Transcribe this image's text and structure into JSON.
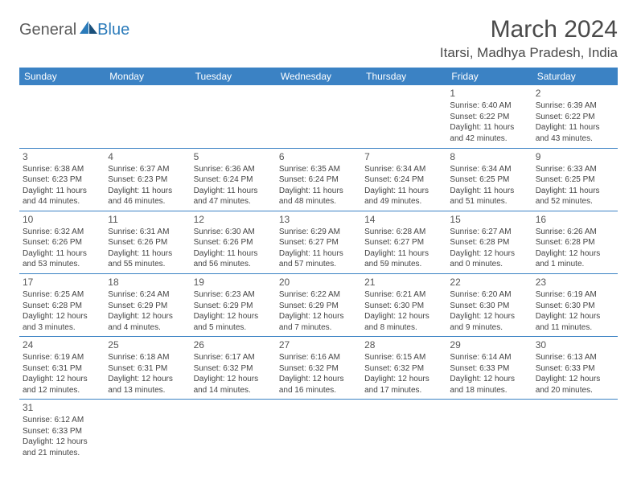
{
  "logo": {
    "general": "General",
    "blue": "Blue"
  },
  "title": "March 2024",
  "location": "Itarsi, Madhya Pradesh, India",
  "header_color": "#3b82c4",
  "border_color": "#3b82c4",
  "text_color": "#444444",
  "days_of_week": [
    "Sunday",
    "Monday",
    "Tuesday",
    "Wednesday",
    "Thursday",
    "Friday",
    "Saturday"
  ],
  "cells": [
    [
      null,
      null,
      null,
      null,
      null,
      {
        "num": "1",
        "sunrise": "Sunrise: 6:40 AM",
        "sunset": "Sunset: 6:22 PM",
        "daylight": "Daylight: 11 hours and 42 minutes."
      },
      {
        "num": "2",
        "sunrise": "Sunrise: 6:39 AM",
        "sunset": "Sunset: 6:22 PM",
        "daylight": "Daylight: 11 hours and 43 minutes."
      }
    ],
    [
      {
        "num": "3",
        "sunrise": "Sunrise: 6:38 AM",
        "sunset": "Sunset: 6:23 PM",
        "daylight": "Daylight: 11 hours and 44 minutes."
      },
      {
        "num": "4",
        "sunrise": "Sunrise: 6:37 AM",
        "sunset": "Sunset: 6:23 PM",
        "daylight": "Daylight: 11 hours and 46 minutes."
      },
      {
        "num": "5",
        "sunrise": "Sunrise: 6:36 AM",
        "sunset": "Sunset: 6:24 PM",
        "daylight": "Daylight: 11 hours and 47 minutes."
      },
      {
        "num": "6",
        "sunrise": "Sunrise: 6:35 AM",
        "sunset": "Sunset: 6:24 PM",
        "daylight": "Daylight: 11 hours and 48 minutes."
      },
      {
        "num": "7",
        "sunrise": "Sunrise: 6:34 AM",
        "sunset": "Sunset: 6:24 PM",
        "daylight": "Daylight: 11 hours and 49 minutes."
      },
      {
        "num": "8",
        "sunrise": "Sunrise: 6:34 AM",
        "sunset": "Sunset: 6:25 PM",
        "daylight": "Daylight: 11 hours and 51 minutes."
      },
      {
        "num": "9",
        "sunrise": "Sunrise: 6:33 AM",
        "sunset": "Sunset: 6:25 PM",
        "daylight": "Daylight: 11 hours and 52 minutes."
      }
    ],
    [
      {
        "num": "10",
        "sunrise": "Sunrise: 6:32 AM",
        "sunset": "Sunset: 6:26 PM",
        "daylight": "Daylight: 11 hours and 53 minutes."
      },
      {
        "num": "11",
        "sunrise": "Sunrise: 6:31 AM",
        "sunset": "Sunset: 6:26 PM",
        "daylight": "Daylight: 11 hours and 55 minutes."
      },
      {
        "num": "12",
        "sunrise": "Sunrise: 6:30 AM",
        "sunset": "Sunset: 6:26 PM",
        "daylight": "Daylight: 11 hours and 56 minutes."
      },
      {
        "num": "13",
        "sunrise": "Sunrise: 6:29 AM",
        "sunset": "Sunset: 6:27 PM",
        "daylight": "Daylight: 11 hours and 57 minutes."
      },
      {
        "num": "14",
        "sunrise": "Sunrise: 6:28 AM",
        "sunset": "Sunset: 6:27 PM",
        "daylight": "Daylight: 11 hours and 59 minutes."
      },
      {
        "num": "15",
        "sunrise": "Sunrise: 6:27 AM",
        "sunset": "Sunset: 6:28 PM",
        "daylight": "Daylight: 12 hours and 0 minutes."
      },
      {
        "num": "16",
        "sunrise": "Sunrise: 6:26 AM",
        "sunset": "Sunset: 6:28 PM",
        "daylight": "Daylight: 12 hours and 1 minute."
      }
    ],
    [
      {
        "num": "17",
        "sunrise": "Sunrise: 6:25 AM",
        "sunset": "Sunset: 6:28 PM",
        "daylight": "Daylight: 12 hours and 3 minutes."
      },
      {
        "num": "18",
        "sunrise": "Sunrise: 6:24 AM",
        "sunset": "Sunset: 6:29 PM",
        "daylight": "Daylight: 12 hours and 4 minutes."
      },
      {
        "num": "19",
        "sunrise": "Sunrise: 6:23 AM",
        "sunset": "Sunset: 6:29 PM",
        "daylight": "Daylight: 12 hours and 5 minutes."
      },
      {
        "num": "20",
        "sunrise": "Sunrise: 6:22 AM",
        "sunset": "Sunset: 6:29 PM",
        "daylight": "Daylight: 12 hours and 7 minutes."
      },
      {
        "num": "21",
        "sunrise": "Sunrise: 6:21 AM",
        "sunset": "Sunset: 6:30 PM",
        "daylight": "Daylight: 12 hours and 8 minutes."
      },
      {
        "num": "22",
        "sunrise": "Sunrise: 6:20 AM",
        "sunset": "Sunset: 6:30 PM",
        "daylight": "Daylight: 12 hours and 9 minutes."
      },
      {
        "num": "23",
        "sunrise": "Sunrise: 6:19 AM",
        "sunset": "Sunset: 6:30 PM",
        "daylight": "Daylight: 12 hours and 11 minutes."
      }
    ],
    [
      {
        "num": "24",
        "sunrise": "Sunrise: 6:19 AM",
        "sunset": "Sunset: 6:31 PM",
        "daylight": "Daylight: 12 hours and 12 minutes."
      },
      {
        "num": "25",
        "sunrise": "Sunrise: 6:18 AM",
        "sunset": "Sunset: 6:31 PM",
        "daylight": "Daylight: 12 hours and 13 minutes."
      },
      {
        "num": "26",
        "sunrise": "Sunrise: 6:17 AM",
        "sunset": "Sunset: 6:32 PM",
        "daylight": "Daylight: 12 hours and 14 minutes."
      },
      {
        "num": "27",
        "sunrise": "Sunrise: 6:16 AM",
        "sunset": "Sunset: 6:32 PM",
        "daylight": "Daylight: 12 hours and 16 minutes."
      },
      {
        "num": "28",
        "sunrise": "Sunrise: 6:15 AM",
        "sunset": "Sunset: 6:32 PM",
        "daylight": "Daylight: 12 hours and 17 minutes."
      },
      {
        "num": "29",
        "sunrise": "Sunrise: 6:14 AM",
        "sunset": "Sunset: 6:33 PM",
        "daylight": "Daylight: 12 hours and 18 minutes."
      },
      {
        "num": "30",
        "sunrise": "Sunrise: 6:13 AM",
        "sunset": "Sunset: 6:33 PM",
        "daylight": "Daylight: 12 hours and 20 minutes."
      }
    ],
    [
      {
        "num": "31",
        "sunrise": "Sunrise: 6:12 AM",
        "sunset": "Sunset: 6:33 PM",
        "daylight": "Daylight: 12 hours and 21 minutes."
      },
      null,
      null,
      null,
      null,
      null,
      null
    ]
  ]
}
